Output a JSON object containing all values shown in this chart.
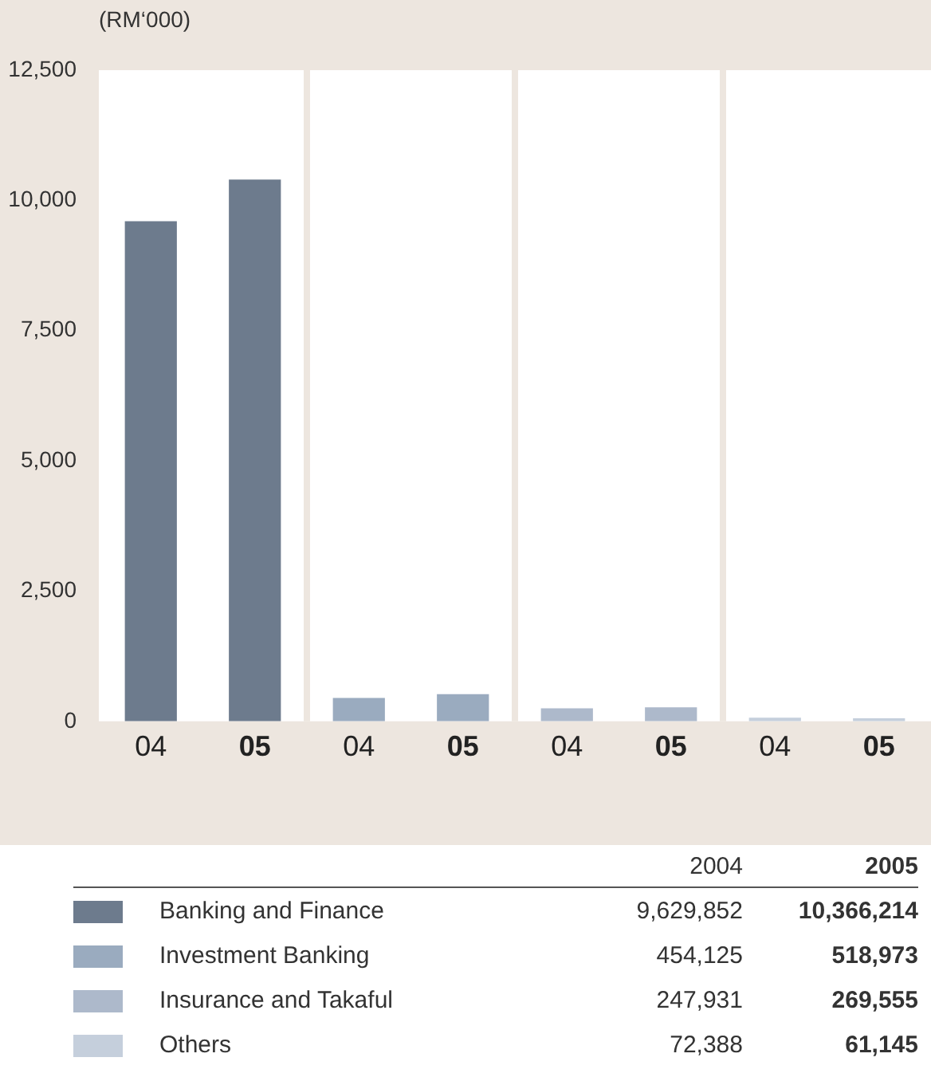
{
  "chart_data": {
    "type": "bar",
    "ylabel": "(RM‘000)",
    "categories": [
      "04",
      "05",
      "04",
      "05",
      "04",
      "05",
      "04",
      "05"
    ],
    "series": [
      {
        "name": "Banking and Finance",
        "color": "#6d7b8d",
        "values": [
          9600,
          10400,
          null,
          null,
          null,
          null,
          null,
          null
        ]
      },
      {
        "name": "Investment Banking",
        "color": "#9aabbf",
        "values": [
          null,
          null,
          450,
          520,
          null,
          null,
          null,
          null
        ]
      },
      {
        "name": "Insurance and Takaful",
        "color": "#adb9cb",
        "values": [
          null,
          null,
          null,
          null,
          250,
          270,
          null,
          null
        ]
      },
      {
        "name": "Others",
        "color": "#c5cfdc",
        "values": [
          null,
          null,
          null,
          null,
          null,
          null,
          70,
          60
        ]
      }
    ],
    "ylim": [
      0,
      12500
    ],
    "yticks": [
      0,
      {
        "value": 2500,
        "label": "2,500"
      },
      {
        "value": 5000,
        "label": "5,000"
      },
      {
        "value": 7500,
        "label": "7,500"
      },
      {
        "value": 10000,
        "label": "10,000"
      },
      {
        "value": 12500,
        "label": "12,500"
      }
    ],
    "grid": false,
    "legend": "bottom",
    "annotations": [
      "2004",
      "2005",
      "9,629,852",
      "10,366,214",
      "454,125",
      "518,973",
      "247,931",
      "269,555",
      "72,388",
      "61,145"
    ]
  }
}
